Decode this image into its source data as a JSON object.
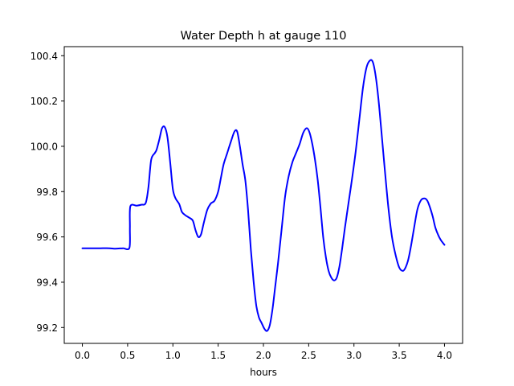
{
  "chart_data": {
    "type": "line",
    "title": "Water Depth h at gauge 110",
    "xlabel": "hours",
    "ylabel": "",
    "xlim": [
      -0.2,
      4.2
    ],
    "ylim": [
      99.13,
      100.44
    ],
    "xticks": [
      0.0,
      0.5,
      1.0,
      1.5,
      2.0,
      2.5,
      3.0,
      3.5,
      4.0
    ],
    "xtick_labels": [
      "0.0",
      "0.5",
      "1.0",
      "1.5",
      "2.0",
      "2.5",
      "3.0",
      "3.5",
      "4.0"
    ],
    "yticks": [
      99.2,
      99.4,
      99.6,
      99.8,
      100.0,
      100.2,
      100.4
    ],
    "ytick_labels": [
      "99.2",
      "99.4",
      "99.6",
      "99.8",
      "100.0",
      "100.2",
      "100.4"
    ],
    "grid": false,
    "legend": false,
    "series": [
      {
        "color": "#0000ff",
        "x": [
          0.0,
          0.1,
          0.2,
          0.3,
          0.35,
          0.4,
          0.45,
          0.52,
          0.525,
          0.53,
          0.6,
          0.65,
          0.7,
          0.73,
          0.76,
          0.8,
          0.82,
          0.85,
          0.88,
          0.91,
          0.94,
          0.97,
          1.0,
          1.03,
          1.07,
          1.1,
          1.14,
          1.18,
          1.22,
          1.25,
          1.28,
          1.31,
          1.34,
          1.38,
          1.42,
          1.46,
          1.5,
          1.53,
          1.56,
          1.6,
          1.64,
          1.68,
          1.71,
          1.74,
          1.77,
          1.8,
          1.83,
          1.86,
          1.89,
          1.92,
          1.95,
          1.98,
          2.01,
          2.04,
          2.07,
          2.1,
          2.13,
          2.16,
          2.2,
          2.24,
          2.28,
          2.32,
          2.36,
          2.4,
          2.44,
          2.48,
          2.51,
          2.54,
          2.57,
          2.6,
          2.63,
          2.66,
          2.69,
          2.72,
          2.75,
          2.78,
          2.81,
          2.84,
          2.87,
          2.9,
          2.94,
          2.98,
          3.02,
          3.06,
          3.1,
          3.14,
          3.18,
          3.21,
          3.24,
          3.27,
          3.3,
          3.34,
          3.38,
          3.42,
          3.46,
          3.5,
          3.54,
          3.57,
          3.6,
          3.63,
          3.66,
          3.7,
          3.74,
          3.78,
          3.81,
          3.84,
          3.87,
          3.9,
          3.94,
          3.97,
          4.0
        ],
        "y": [
          99.55,
          99.55,
          99.55,
          99.55,
          99.548,
          99.549,
          99.55,
          99.552,
          99.64,
          99.735,
          99.738,
          99.742,
          99.75,
          99.82,
          99.94,
          99.97,
          99.985,
          100.03,
          100.08,
          100.085,
          100.04,
          99.93,
          99.81,
          99.77,
          99.745,
          99.71,
          99.695,
          99.685,
          99.672,
          99.63,
          99.6,
          99.61,
          99.66,
          99.72,
          99.748,
          99.76,
          99.8,
          99.86,
          99.92,
          99.97,
          100.02,
          100.065,
          100.065,
          100.0,
          99.92,
          99.85,
          99.72,
          99.55,
          99.41,
          99.3,
          99.245,
          99.22,
          99.195,
          99.185,
          99.21,
          99.28,
          99.38,
          99.48,
          99.63,
          99.78,
          99.87,
          99.93,
          99.97,
          100.01,
          100.06,
          100.08,
          100.06,
          100.01,
          99.94,
          99.85,
          99.73,
          99.6,
          99.51,
          99.45,
          99.42,
          99.408,
          99.42,
          99.47,
          99.55,
          99.64,
          99.75,
          99.86,
          99.98,
          100.12,
          100.26,
          100.35,
          100.38,
          100.37,
          100.31,
          100.21,
          100.08,
          99.9,
          99.73,
          99.6,
          99.52,
          99.465,
          99.45,
          99.465,
          99.5,
          99.56,
          99.63,
          99.72,
          99.762,
          99.77,
          99.76,
          99.73,
          99.69,
          99.64,
          99.6,
          99.58,
          99.565
        ]
      }
    ]
  }
}
